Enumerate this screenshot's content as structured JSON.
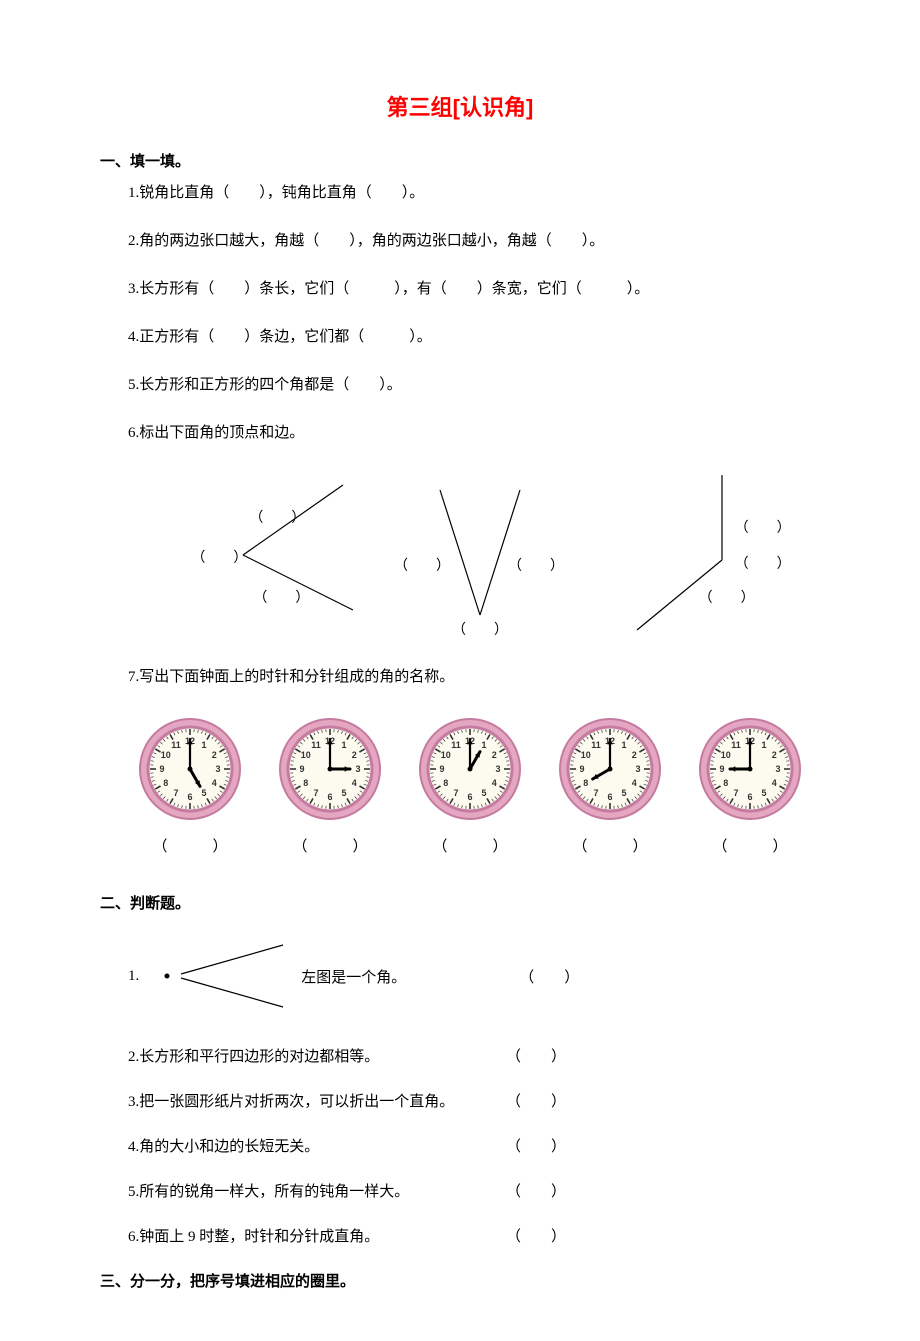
{
  "title": "第三组[认识角]",
  "section1": {
    "heading": "一、填一填。",
    "q1": "1.锐角比直角（　　），钝角比直角（　　）。",
    "q2": "2.角的两边张口越大，角越（　　），角的两边张口越小，角越（　　）。",
    "q3": "3.长方形有（　　）条长，它们（　　　），有（　　）条宽，它们（　　　）。",
    "q4": "4.正方形有（　　）条边，它们都（　　　）。",
    "q5": "5.长方形和正方形的四个角都是（　　）。",
    "q6": "6.标出下面角的顶点和边。",
    "q7": "7.写出下面钟面上的时针和分针组成的角的名称。",
    "blank_paren": "（　　）",
    "blank_paren_wide": "（　　　）"
  },
  "clocks": {
    "face_colors": {
      "ring": "#e4a6c0",
      "inner_ring": "#c57aa0",
      "face": "#fdfbf0",
      "tick": "#333333",
      "hand": "#000000"
    },
    "numbers": [
      "12",
      "1",
      "2",
      "3",
      "4",
      "5",
      "6",
      "7",
      "8",
      "9",
      "10",
      "11"
    ],
    "times": [
      {
        "hour": 5,
        "minute": 0
      },
      {
        "hour": 3,
        "minute": 0
      },
      {
        "hour": 1,
        "minute": 0
      },
      {
        "hour": 8,
        "minute": 0
      },
      {
        "hour": 9,
        "minute": 0
      }
    ],
    "label": "（　　　）"
  },
  "section2": {
    "heading": "二、判断题。",
    "q1_num": "1.",
    "q1_txt": "左图是一个角。",
    "q2": "2.长方形和平行四边形的对边都相等。",
    "q3": "3.把一张圆形纸片对折两次，可以折出一个直角。",
    "q4": "4.角的大小和边的长短无关。",
    "q5": "5.所有的锐角一样大，所有的钝角一样大。",
    "q6": "6.钟面上 9 时整，时针和分针成直角。",
    "paren": "（　　）"
  },
  "section3": {
    "heading": "三、分一分，把序号填进相应的圈里。"
  },
  "angle_diagrams": {
    "stroke": "#000000",
    "stroke_width": 1.2
  }
}
